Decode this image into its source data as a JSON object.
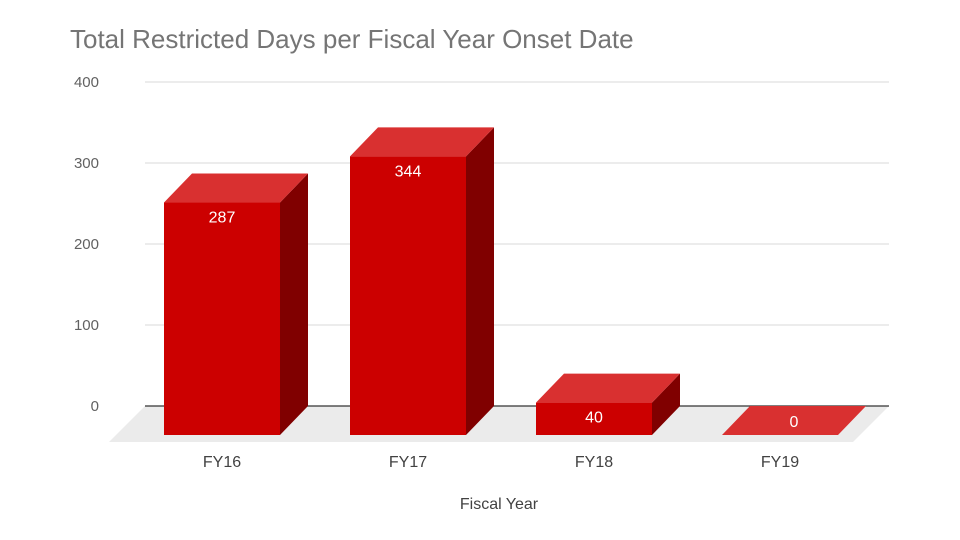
{
  "chart_data": {
    "type": "bar",
    "title": "Total Restricted Days per Fiscal Year Onset Date",
    "xlabel": "Fiscal Year",
    "ylabel": "",
    "categories": [
      "FY16",
      "FY17",
      "FY18",
      "FY19"
    ],
    "values": [
      287,
      344,
      40,
      0
    ],
    "data_labels": [
      "287",
      "344",
      "40",
      "0"
    ],
    "yticks": [
      "0",
      "100",
      "200",
      "300",
      "400"
    ],
    "ylim": [
      0,
      400
    ],
    "grid": true,
    "style": "3d",
    "colors": {
      "front": "#cc0000",
      "top": "#d93030",
      "side": "#800000",
      "floor": "#ebebeb"
    }
  }
}
